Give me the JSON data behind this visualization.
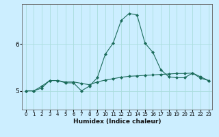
{
  "xlabel": "Humidex (Indice chaleur)",
  "background_color": "#cceeff",
  "grid_color": "#aadddd",
  "line_color": "#1a6b5a",
  "x_values": [
    0,
    1,
    2,
    3,
    4,
    5,
    6,
    7,
    8,
    9,
    10,
    11,
    12,
    13,
    14,
    15,
    16,
    17,
    18,
    19,
    20,
    21,
    22,
    23
  ],
  "y_line1": [
    5.0,
    5.0,
    5.1,
    5.22,
    5.22,
    5.17,
    5.17,
    5.0,
    5.1,
    5.28,
    5.78,
    6.02,
    6.5,
    6.65,
    6.62,
    6.02,
    5.82,
    5.45,
    5.3,
    5.28,
    5.28,
    5.38,
    5.27,
    5.22
  ],
  "y_line2": [
    5.0,
    5.0,
    5.06,
    5.22,
    5.22,
    5.19,
    5.19,
    5.16,
    5.13,
    5.19,
    5.23,
    5.26,
    5.29,
    5.31,
    5.32,
    5.33,
    5.34,
    5.35,
    5.36,
    5.37,
    5.37,
    5.38,
    5.3,
    5.22
  ],
  "ylim": [
    4.6,
    6.85
  ],
  "xlim": [
    -0.5,
    23.5
  ],
  "yticks": [
    5,
    6
  ],
  "xtick_labels": [
    "0",
    "1",
    "2",
    "3",
    "4",
    "5",
    "6",
    "7",
    "8",
    "9",
    "10",
    "11",
    "12",
    "13",
    "14",
    "15",
    "16",
    "17",
    "18",
    "19",
    "20",
    "21",
    "22",
    "23"
  ],
  "marker": "D",
  "marker_size": 2.0,
  "linewidth": 0.8,
  "xlabel_fontsize": 6.5,
  "tick_fontsize_x": 5.0,
  "tick_fontsize_y": 6.5
}
